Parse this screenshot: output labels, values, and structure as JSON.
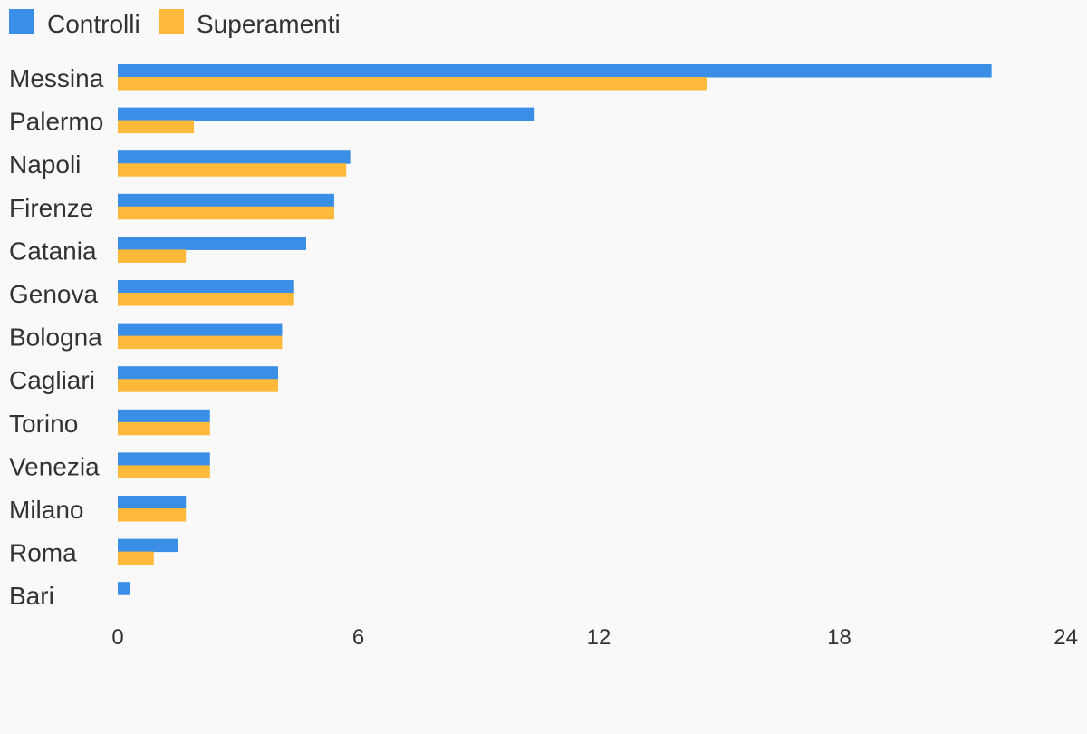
{
  "colors": {
    "background": "#f9f9f9",
    "text": "#333333",
    "controlli": "#3a8ee6",
    "superamenti": "#fdb93a"
  },
  "legend": {
    "position": "top-left",
    "items": [
      {
        "label": "Controlli",
        "color": "#3a8ee6"
      },
      {
        "label": "Superamenti",
        "color": "#fdb93a"
      }
    ]
  },
  "chart_data": {
    "type": "bar",
    "orientation": "horizontal",
    "categories": [
      "Messina",
      "Palermo",
      "Napoli",
      "Firenze",
      "Catania",
      "Genova",
      "Bologna",
      "Cagliari",
      "Torino",
      "Venezia",
      "Milano",
      "Roma",
      "Bari"
    ],
    "series": [
      {
        "name": "Controlli",
        "color": "#3a8ee6",
        "values": [
          21.8,
          10.4,
          5.8,
          5.4,
          4.7,
          4.4,
          4.1,
          4.0,
          2.3,
          2.3,
          1.7,
          1.5,
          0.3
        ]
      },
      {
        "name": "Superamenti",
        "color": "#fdb93a",
        "values": [
          14.7,
          1.9,
          5.7,
          5.4,
          1.7,
          4.4,
          4.1,
          4.0,
          2.3,
          2.3,
          1.7,
          0.9,
          0
        ]
      }
    ],
    "xlim": [
      0,
      24
    ],
    "xticks": [
      "0",
      "6",
      "12",
      "18",
      "24"
    ],
    "grid": false,
    "legend_position": "top-left"
  }
}
